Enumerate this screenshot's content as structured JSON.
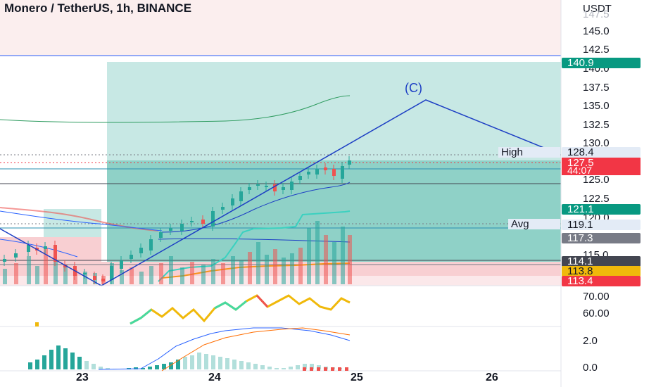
{
  "header": {
    "title": "Monero / TetherUS, 1h, BINANCE"
  },
  "axis": {
    "currency": "USDT",
    "top_partial": "147.5",
    "price_ticks": [
      "145.0",
      "142.5",
      "140.0",
      "137.5",
      "135.0",
      "132.5",
      "130.0",
      "125.0",
      "122.5",
      "120.0",
      "115.0"
    ],
    "rsi_ticks": [
      "70.00",
      "60.00"
    ],
    "macd_ticks": [
      "2.0",
      "0.0"
    ],
    "x_ticks": [
      "23",
      "24",
      "25",
      "26"
    ]
  },
  "price_tags": {
    "target": "140.9",
    "high_label": "High",
    "high": "128.4",
    "last": "127.5",
    "countdown": "44:07",
    "level_121": "121.1",
    "avg_label": "Avg",
    "avg": "119.1",
    "level_117": "117.3",
    "level_114": "114.1",
    "level_113_8": "113.8",
    "level_113_4": "113.4"
  },
  "annotation": {
    "wave_label": "(C)"
  },
  "colors": {
    "up": "#26a69a",
    "down": "#ef5350",
    "target_zone": "#6cc4b8",
    "wave_line": "#1d3fc4",
    "badge_teal": "#089981",
    "badge_red": "#f23645",
    "badge_gray": "#787b86",
    "badge_yellow": "#f0b90b",
    "badge_dark": "#434651"
  }
}
